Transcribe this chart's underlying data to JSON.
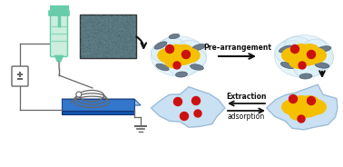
{
  "bg_color": "#ffffff",
  "syringe_body_color": "#cceedd",
  "syringe_tip_color": "#66ccaa",
  "syringe_grip_color": "#55bbaa",
  "wire_color": "#666666",
  "sem_bg_color": "#5a7880",
  "arrow_color": "#111111",
  "yellow_blob_color": "#f5c000",
  "red_dot_color": "#cc1111",
  "gray_rod_color": "#607080",
  "fiber_color": "#b8d8ee",
  "plate_top_color": "#aaccee",
  "plate_mid_color": "#3377cc",
  "plate_bot_color": "#1155aa",
  "pre_arr_text": "Pre–arrangement",
  "extraction_text": "Extraction",
  "adsorption_text": "adsorption",
  "figw": 3.78,
  "figh": 1.84
}
